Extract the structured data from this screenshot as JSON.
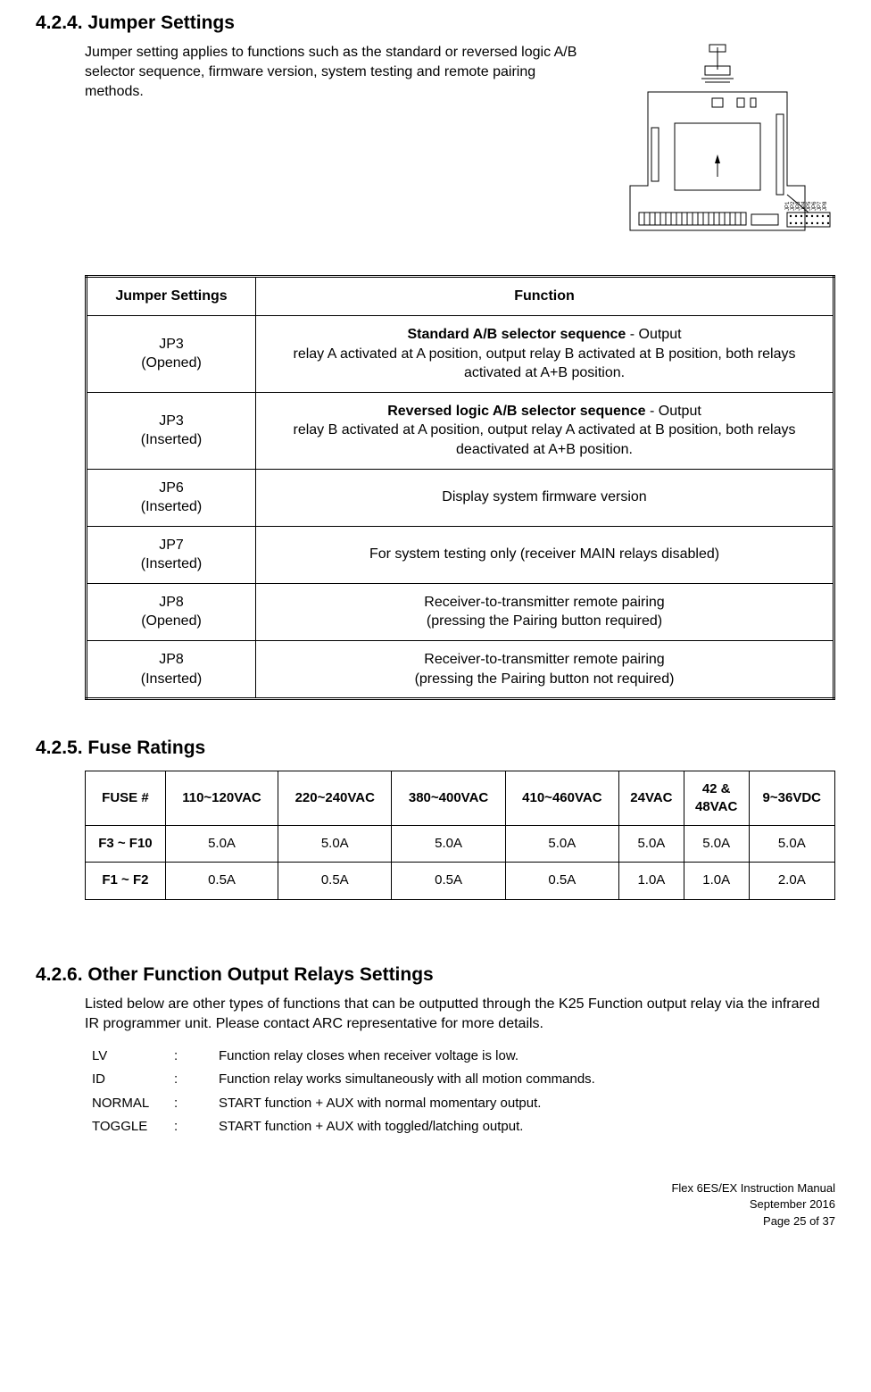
{
  "sections": {
    "s424": {
      "heading": "4.2.4. Jumper Settings"
    },
    "s425": {
      "heading": "4.2.5. Fuse Ratings"
    },
    "s426": {
      "heading": "4.2.6. Other Function Output Relays Settings"
    }
  },
  "intro": "Jumper setting applies to functions such as the standard or reversed logic A/B selector sequence, firmware version, system testing and remote pairing methods.",
  "jumper_table": {
    "head": {
      "col1": "Jumper Settings",
      "col2": "Function"
    },
    "rows": [
      {
        "jumper": "JP3",
        "state": "(Opened)",
        "title": "Standard A/B selector sequence",
        "sep": " - Output",
        "body": "relay A activated at A position, output relay B activated at B position, both relays activated at A+B position."
      },
      {
        "jumper": "JP3",
        "state": "(Inserted)",
        "title": "Reversed logic A/B selector sequence",
        "sep": " - Output",
        "body": "relay B activated at A position, output relay A activated at B position, both relays deactivated at A+B position."
      },
      {
        "jumper": "JP6",
        "state": "(Inserted)",
        "title": "",
        "sep": "",
        "body": "Display system firmware version"
      },
      {
        "jumper": "JP7",
        "state": "(Inserted)",
        "title": "",
        "sep": "",
        "body": "For system testing only (receiver MAIN relays disabled)"
      },
      {
        "jumper": "JP8",
        "state": "(Opened)",
        "title": "",
        "sep": "",
        "body": "Receiver-to-transmitter remote pairing\n(pressing the Pairing button required)"
      },
      {
        "jumper": "JP8",
        "state": "(Inserted)",
        "title": "",
        "sep": "",
        "body": "Receiver-to-transmitter remote pairing\n(pressing the Pairing button not required)"
      }
    ]
  },
  "fuse_table": {
    "head": [
      "FUSE #",
      "110~120VAC",
      "220~240VAC",
      "380~400VAC",
      "410~460VAC",
      "24VAC",
      "42 &\n48VAC",
      "9~36VDC"
    ],
    "rows": [
      {
        "label": "F3 ~ F10",
        "cells": [
          "5.0A",
          "5.0A",
          "5.0A",
          "5.0A",
          "5.0A",
          "5.0A",
          "5.0A"
        ]
      },
      {
        "label": "F1 ~ F2",
        "cells": [
          "0.5A",
          "0.5A",
          "0.5A",
          "0.5A",
          "1.0A",
          "1.0A",
          "2.0A"
        ]
      }
    ]
  },
  "s426_intro": "Listed below are other types of functions that can be outputted through the K25 Function output relay via the infrared IR programmer unit.  Please contact ARC representative for more details.",
  "func_list": [
    {
      "k": "LV",
      "sep": ":",
      "v": "Function relay closes when receiver voltage is low."
    },
    {
      "k": "ID",
      "sep": ":",
      "v": "Function relay works simultaneously with all motion commands."
    },
    {
      "k": "NORMAL",
      "sep": ":",
      "v": "START function + AUX with normal momentary output."
    },
    {
      "k": "TOGGLE",
      "sep": ":",
      "v": "START function + AUX with toggled/latching output."
    }
  ],
  "board_labels": [
    "JP1",
    "JP2",
    "JP3",
    "JP4",
    "JP5",
    "JP6",
    "JP7",
    "JP8"
  ],
  "footer": {
    "l1": "Flex 6ES/EX Instruction Manual",
    "l2": "September 2016",
    "l3": "Page 25 of 37"
  }
}
